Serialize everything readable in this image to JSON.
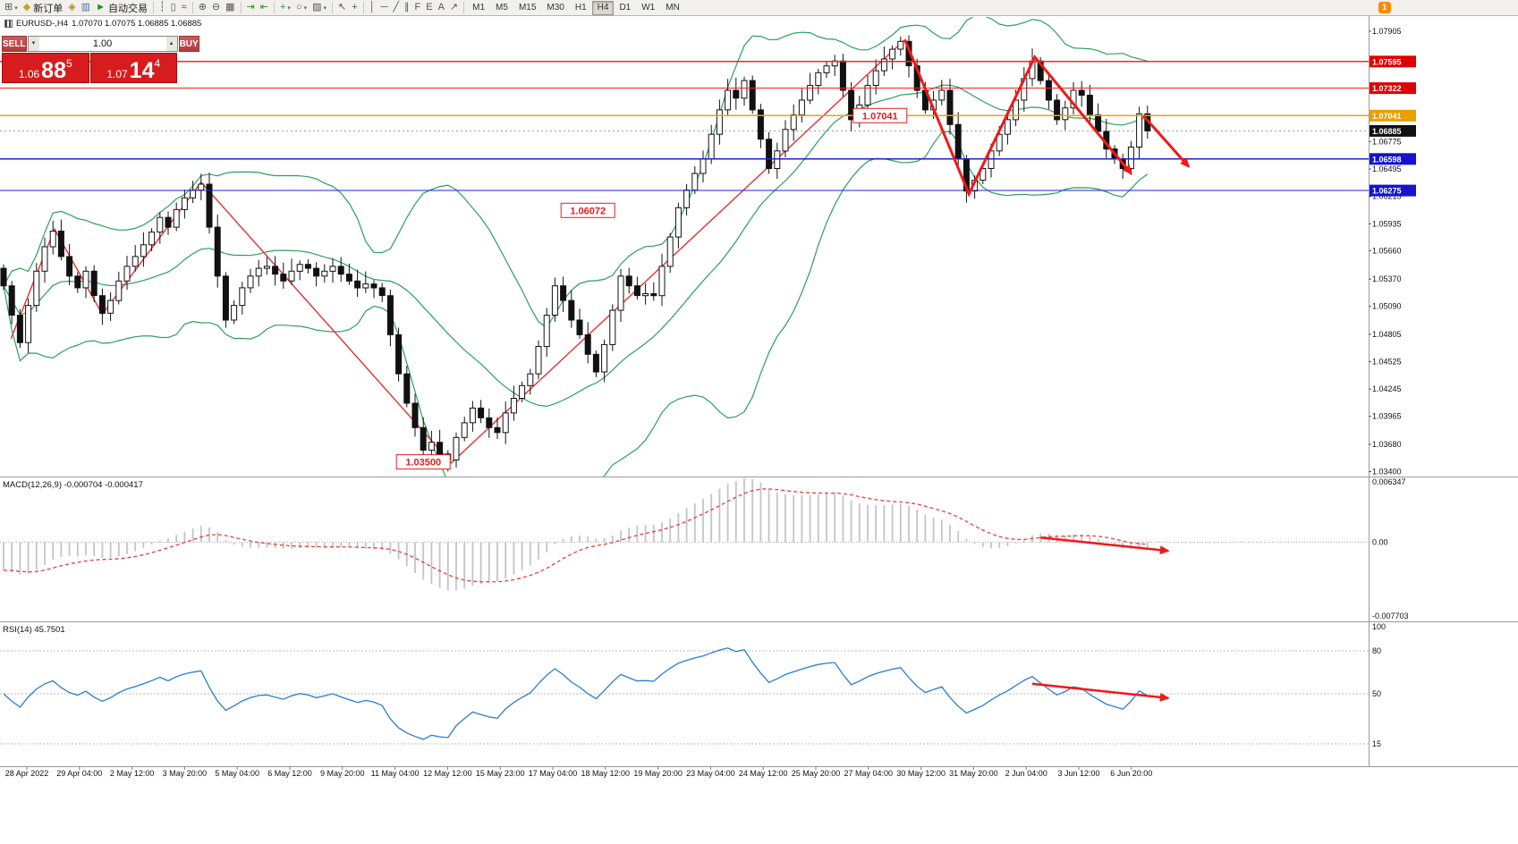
{
  "window": {
    "notification_count": "1"
  },
  "toolbar": {
    "items": [
      {
        "name": "new-chart",
        "glyph": "⊞",
        "caret": true
      },
      {
        "name": "new-order",
        "glyph": "◆",
        "glyph_color": "#c9a227",
        "label": "新订单"
      },
      {
        "name": "market-depth",
        "glyph": "◈",
        "glyph_color": "#b08a2e"
      },
      {
        "name": "strategy",
        "glyph": "▥",
        "glyph_color": "#4a6fae"
      },
      {
        "name": "auto-trading",
        "glyph": "►",
        "glyph_color": "#149414",
        "label": "自动交易"
      },
      {
        "sep": true
      },
      {
        "name": "bar-chart-mode",
        "glyph": "┆"
      },
      {
        "name": "candlestick-mode",
        "glyph": "▯"
      },
      {
        "name": "line-chart-mode",
        "glyph": "≈"
      },
      {
        "sep": true
      },
      {
        "name": "zoom-in",
        "glyph": "⊕"
      },
      {
        "name": "zoom-out",
        "glyph": "⊖"
      },
      {
        "name": "tile-windows",
        "glyph": "▦"
      },
      {
        "sep": true
      },
      {
        "name": "auto-scroll",
        "glyph": "⇥",
        "glyph_color": "#2f8f2f"
      },
      {
        "name": "chart-shift",
        "glyph": "⇤",
        "glyph_color": "#2f8f2f"
      },
      {
        "sep": true
      },
      {
        "name": "indicators",
        "glyph": "+",
        "glyph_color": "#2f8f2f",
        "caret": true
      },
      {
        "name": "periods",
        "glyph": "○",
        "caret": true
      },
      {
        "name": "templates",
        "glyph": "▨",
        "caret": true
      },
      {
        "sep": true
      },
      {
        "name": "cursor",
        "glyph": "↖"
      },
      {
        "name": "crosshair",
        "glyph": "+"
      },
      {
        "sep": true
      },
      {
        "name": "vertical-line",
        "glyph": "│"
      },
      {
        "name": "horizontal-line",
        "glyph": "─"
      },
      {
        "name": "trendline",
        "glyph": "╱"
      },
      {
        "name": "equidistant-channel",
        "glyph": "∥"
      },
      {
        "name": "fibonacci",
        "glyph": "F"
      },
      {
        "name": "ellipse",
        "glyph": "E"
      },
      {
        "name": "text-tool",
        "glyph": "A"
      },
      {
        "name": "arrows-tool",
        "glyph": "↗"
      },
      {
        "sep": true
      }
    ],
    "timeframes": [
      "M1",
      "M5",
      "M15",
      "M30",
      "H1",
      "H4",
      "D1",
      "W1",
      "MN"
    ],
    "active_timeframe": "H4"
  },
  "chart": {
    "symbol": "EURUSD-,H4",
    "ohlc": "1.07070 1.07075 1.06885 1.06885"
  },
  "trade_panel": {
    "sell_label": "SELL",
    "buy_label": "BUY",
    "volume": "1.00",
    "sell": {
      "prefix": "1.06",
      "big": "88",
      "sup": "5"
    },
    "buy": {
      "prefix": "1.07",
      "big": "14",
      "sup": "4"
    }
  },
  "chart_data": {
    "type": "candlestick",
    "symbol": "EURUSD",
    "timeframe": "H4",
    "current_price": 1.06885,
    "price_axis": {
      "min": 1.0335,
      "max": 1.0805,
      "ticks": [
        1.07905,
        1.06775,
        1.06495,
        1.06215,
        1.05935,
        1.0566,
        1.0537,
        1.0509,
        1.04805,
        1.04525,
        1.04245,
        1.03965,
        1.0368,
        1.034
      ],
      "tags": [
        {
          "price": 1.07595,
          "bg": "#e00000"
        },
        {
          "price": 1.07322,
          "bg": "#e00000"
        },
        {
          "price": 1.07041,
          "bg": "#e8a000"
        },
        {
          "price": 1.06885,
          "bg": "#111111"
        },
        {
          "price": 1.06598,
          "bg": "#1414cc"
        },
        {
          "price": 1.06275,
          "bg": "#1414cc"
        }
      ]
    },
    "candles_close": [
      1.053,
      1.05,
      1.0472,
      1.051,
      1.0545,
      1.057,
      1.0586,
      1.056,
      1.054,
      1.0528,
      1.0545,
      1.052,
      1.0502,
      1.0515,
      1.0535,
      1.055,
      1.056,
      1.0572,
      1.0585,
      1.06,
      1.059,
      1.0608,
      1.062,
      1.0628,
      1.0634,
      1.059,
      1.054,
      1.0495,
      1.051,
      1.0528,
      1.054,
      1.0548,
      1.055,
      1.0542,
      1.0535,
      1.0545,
      1.0552,
      1.0548,
      1.054,
      1.0545,
      1.055,
      1.0542,
      1.0535,
      1.0528,
      1.0532,
      1.0528,
      1.052,
      1.048,
      1.044,
      1.041,
      1.0385,
      1.0362,
      1.037,
      1.0358,
      1.0352,
      1.0375,
      1.039,
      1.0405,
      1.0395,
      1.0385,
      1.038,
      1.04,
      1.0415,
      1.0428,
      1.044,
      1.0468,
      1.05,
      1.053,
      1.0515,
      1.0495,
      1.048,
      1.046,
      1.0442,
      1.047,
      1.0505,
      1.054,
      1.053,
      1.052,
      1.0522,
      1.052,
      1.055,
      1.058,
      1.061,
      1.0628,
      1.0645,
      1.066,
      1.0685,
      1.071,
      1.073,
      1.0722,
      1.074,
      1.071,
      1.068,
      1.065,
      1.0668,
      1.069,
      1.0705,
      1.072,
      1.0735,
      1.0748,
      1.0755,
      1.076,
      1.073,
      1.07,
      1.0715,
      1.0735,
      1.075,
      1.0762,
      1.0772,
      1.078,
      1.0755,
      1.073,
      1.071,
      1.072,
      1.073,
      1.0695,
      1.066,
      1.0627,
      1.0638,
      1.065,
      1.0668,
      1.0685,
      1.07,
      1.072,
      1.0742,
      1.076,
      1.074,
      1.072,
      1.07,
      1.0712,
      1.073,
      1.0725,
      1.0705,
      1.0688,
      1.067,
      1.066,
      1.065,
      1.0672,
      1.0706,
      1.06885
    ],
    "candle_colors": {
      "up": "#ffffff",
      "down": "#111111",
      "outline": "#111111"
    },
    "bollinger": {
      "period": 20,
      "deviation": 2,
      "color": "#2e9e5e"
    },
    "hlines": [
      {
        "price": 1.07595,
        "color": "#ff2020"
      },
      {
        "price": 1.07322,
        "color": "#ff2020"
      },
      {
        "price": 1.07041,
        "color": "#efa400"
      },
      {
        "price": 1.06598,
        "color": "#2020cc"
      },
      {
        "price": 1.06275,
        "color": "#2020cc"
      }
    ],
    "zigzag": {
      "color": "#e43030",
      "points": [
        [
          0.9,
          1.0476
        ],
        [
          6.2,
          1.0588
        ],
        [
          12,
          1.0501
        ],
        [
          24,
          1.0636
        ],
        [
          54.4,
          1.0349
        ],
        [
          109.4,
          1.0781
        ]
      ]
    },
    "drawn_arrows": [
      {
        "points": [
          [
            109.5,
            1.0782
          ],
          [
            117.3,
            1.0624
          ],
          [
            125.3,
            1.0764
          ],
          [
            137,
            1.0645
          ]
        ]
      },
      {
        "points": [
          [
            138.5,
            1.0704
          ],
          [
            144,
            1.0652
          ]
        ]
      }
    ],
    "annotations": [
      {
        "text": "1.07041",
        "i": 106.5,
        "price": 1.07041
      },
      {
        "text": "1.06072",
        "i": 71,
        "price": 1.06072
      },
      {
        "text": "1.03500",
        "i": 51,
        "price": 1.035
      }
    ],
    "time_labels": [
      "28 Apr 2022",
      "29 Apr 04:00",
      "2 May 12:00",
      "3 May 20:00",
      "5 May 04:00",
      "6 May 12:00",
      "9 May 20:00",
      "11 May 04:00",
      "12 May 12:00",
      "15 May 23:00",
      "17 May 04:00",
      "18 May 12:00",
      "19 May 20:00",
      "23 May 04:00",
      "24 May 12:00",
      "25 May 20:00",
      "27 May 04:00",
      "30 May 12:00",
      "31 May 20:00",
      "2 Jun 04:00",
      "3 Jun 12:00",
      "6 Jun 20:00"
    ],
    "macd": {
      "label": "MACD(12,26,9) -0.000704 -0.000417",
      "fast": 12,
      "slow": 26,
      "signal": 9,
      "vmax": 0.0068,
      "vmin": -0.0082,
      "scale_labels": [
        "0.006347",
        "0.00",
        "-0.007703"
      ],
      "histogram_color": "#c4c4c4",
      "signal_color": "#e04040",
      "arrow": {
        "i1": 126,
        "v1": 0.0005,
        "i2": 141.5,
        "v2": -0.0009
      }
    },
    "rsi": {
      "label": "RSI(14) 45.7501",
      "period": 14,
      "line_color": "#2b7cd3",
      "levels": [
        80,
        50,
        15
      ],
      "scale_labels": [
        100,
        80,
        50,
        15
      ],
      "arrow": {
        "i1": 125,
        "v1": 57,
        "i2": 141.5,
        "v2": 47
      }
    }
  }
}
